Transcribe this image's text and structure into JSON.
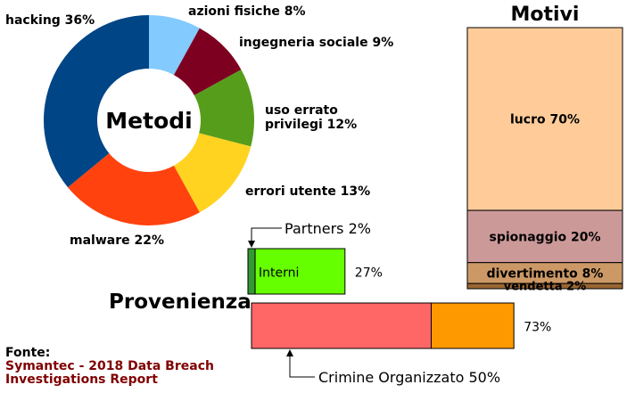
{
  "colors": {
    "hacking": "#004586",
    "azioni_fisiche": "#83caff",
    "ingegneria_sociale": "#7e0021",
    "uso_errato_privilegi": "#579d1c",
    "errori_utente": "#ffd320",
    "malware": "#ff420e",
    "lucro": "#ffcc99",
    "spionaggio": "#cc9999",
    "divertimento": "#cc9966",
    "vendetta": "#996633",
    "interni": "#66ff00",
    "partners": "#339933",
    "crimine_organizzato": "#ff6666",
    "provenienza_other": "#ff9900"
  },
  "chart_data": [
    {
      "type": "pie",
      "center_label": "Metodi",
      "slices": [
        {
          "label": "azioni fisiche 8%",
          "value": 8,
          "color_key": "azioni_fisiche"
        },
        {
          "label": "ingegneria sociale 9%",
          "value": 9,
          "color_key": "ingegneria_sociale"
        },
        {
          "label_lines": [
            "uso errato",
            "privilegi 12%"
          ],
          "value": 12,
          "color_key": "uso_errato_privilegi"
        },
        {
          "label": "errori utente 13%",
          "value": 13,
          "color_key": "errori_utente"
        },
        {
          "label": "malware 22%",
          "value": 22,
          "color_key": "malware"
        },
        {
          "label": "hacking 36%",
          "value": 36,
          "color_key": "hacking"
        }
      ]
    },
    {
      "type": "bar",
      "stacked": true,
      "title": "Motivi",
      "segments": [
        {
          "label": "lucro 70%",
          "value": 70,
          "color_key": "lucro"
        },
        {
          "label": "spionaggio 20%",
          "value": 20,
          "color_key": "spionaggio"
        },
        {
          "label": "divertimento 8%",
          "value": 8,
          "color_key": "divertimento"
        },
        {
          "label": "vendetta 2%",
          "value": 2,
          "color_key": "vendetta"
        }
      ]
    },
    {
      "type": "bar",
      "orientation": "horizontal",
      "title": "Provenienza",
      "bars": [
        {
          "total_label": "27%",
          "total": 27,
          "inner_label": "Interni",
          "segments": [
            {
              "value": 2,
              "color_key": "partners",
              "callout": "Partners 2%"
            },
            {
              "value": 25,
              "color_key": "interni"
            }
          ]
        },
        {
          "total_label": "73%",
          "total": 73,
          "segments": [
            {
              "value": 50,
              "color_key": "crimine_organizzato",
              "callout": "Crimine Organizzato 50%"
            },
            {
              "value": 23,
              "color_key": "provenienza_other"
            }
          ]
        }
      ]
    }
  ],
  "source": {
    "heading": "Fonte:",
    "text_lines": [
      "Symantec - 2018 Data Breach",
      "Investigations Report"
    ]
  }
}
